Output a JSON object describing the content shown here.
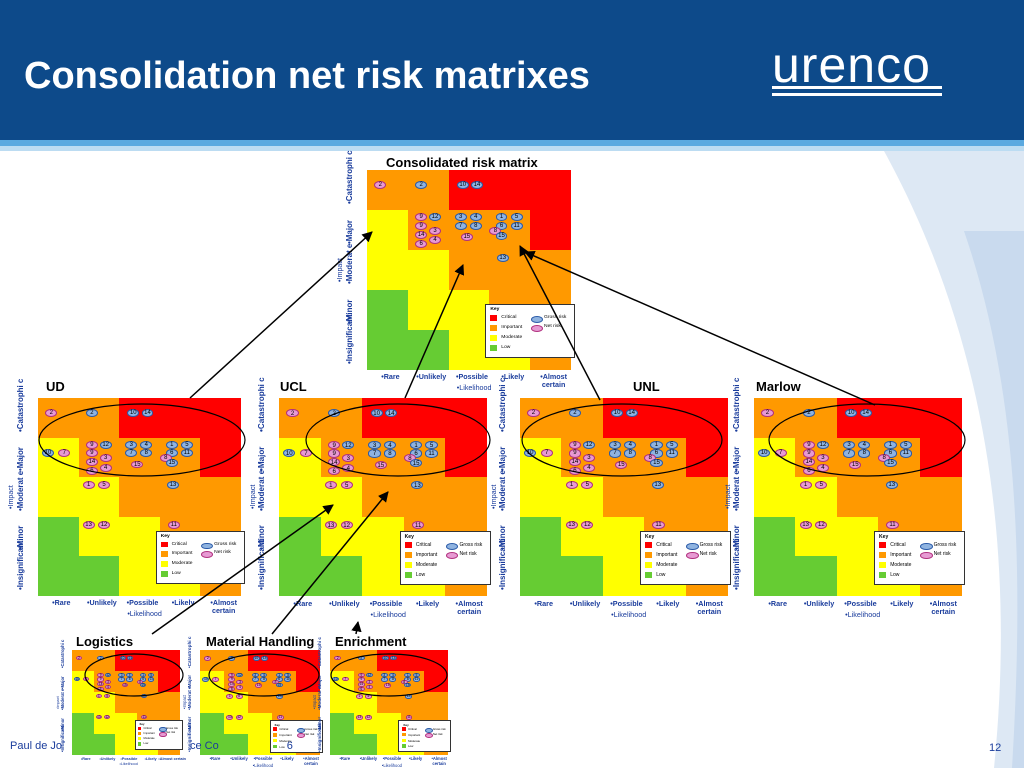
{
  "slide": {
    "title": "Consolidation net risk matrixes",
    "logo_text": "urenco",
    "footer_text": "Paul de Jo",
    "footer_tail": "ce Co",
    "footer_tail2": "6",
    "page_number": "12"
  },
  "colors": {
    "header": "#0d4a8a",
    "critical": "#ff0000",
    "important": "#ff9900",
    "moderate": "#ffff00",
    "low": "#66cc33",
    "gross_oval": "#8fb3e0",
    "net_oval": "#e79ad3",
    "arrow": "#000000"
  },
  "matrix_common": {
    "impact_rows": [
      "•Catastrophi c",
      "•Major",
      "•Moderat e",
      "•Minor",
      "•Insignificant"
    ],
    "impact_axis_label": "•Impact",
    "likelihood_cols": [
      "•Rare",
      "•Unlikely",
      "•Possible",
      "•Likely",
      "•Almost certain"
    ],
    "likelihood_axis_label": "•Likelihood",
    "color_grid": [
      [
        "important",
        "important",
        "critical",
        "critical",
        "critical"
      ],
      [
        "moderate",
        "important",
        "important",
        "important",
        "critical"
      ],
      [
        "moderate",
        "moderate",
        "important",
        "important",
        "important"
      ],
      [
        "low",
        "moderate",
        "moderate",
        "important",
        "important"
      ],
      [
        "low",
        "low",
        "moderate",
        "moderate",
        "important"
      ]
    ],
    "key": {
      "title": "Key",
      "levels": [
        "Critical",
        "Important",
        "Moderate",
        "Low"
      ],
      "gross_label": "Gross risk",
      "net_label": "Net risk"
    }
  },
  "matrices": [
    {
      "id": "consolidated",
      "title": "Consolidated risk matrix",
      "left_ovals": false,
      "bottom_ovals": false
    },
    {
      "id": "ud",
      "title": "UD",
      "left_ovals": true,
      "bottom_ovals": true
    },
    {
      "id": "ucl",
      "title": "UCL",
      "left_ovals": true,
      "bottom_ovals": true
    },
    {
      "id": "unl",
      "title": "UNL",
      "left_ovals": true,
      "bottom_ovals": true
    },
    {
      "id": "marlow",
      "title": "Marlow",
      "left_ovals": true,
      "bottom_ovals": true
    },
    {
      "id": "logistics",
      "title": "Logistics",
      "left_ovals": true,
      "bottom_ovals": true
    },
    {
      "id": "material-handling",
      "title": "Material Handling",
      "left_ovals": true,
      "bottom_ovals": true
    },
    {
      "id": "enrichment",
      "title": "Enrichment",
      "left_ovals": true,
      "bottom_ovals": true
    }
  ],
  "risk_markers": [
    {
      "label": "2",
      "type": "n",
      "c": 0,
      "r": 0,
      "dx": 0.18,
      "dy": 0.28
    },
    {
      "label": "2",
      "type": "g",
      "c": 1,
      "r": 0,
      "dx": 0.18,
      "dy": 0.28
    },
    {
      "label": "10",
      "type": "g",
      "c": 2,
      "r": 0,
      "dx": 0.2,
      "dy": 0.28
    },
    {
      "label": "14",
      "type": "g",
      "c": 2,
      "r": 0,
      "dx": 0.55,
      "dy": 0.28
    },
    {
      "label": "9",
      "type": "n",
      "c": 1,
      "r": 1,
      "dx": 0.18,
      "dy": 0.08
    },
    {
      "label": "12",
      "type": "g",
      "c": 1,
      "r": 1,
      "dx": 0.52,
      "dy": 0.08
    },
    {
      "label": "9",
      "type": "n",
      "c": 1,
      "r": 1,
      "dx": 0.18,
      "dy": 0.3
    },
    {
      "label": "14",
      "type": "n",
      "c": 1,
      "r": 1,
      "dx": 0.18,
      "dy": 0.52
    },
    {
      "label": "3",
      "type": "n",
      "c": 1,
      "r": 1,
      "dx": 0.52,
      "dy": 0.42
    },
    {
      "label": "6",
      "type": "n",
      "c": 1,
      "r": 1,
      "dx": 0.18,
      "dy": 0.74
    },
    {
      "label": "4",
      "type": "n",
      "c": 1,
      "r": 1,
      "dx": 0.52,
      "dy": 0.66
    },
    {
      "label": "3",
      "type": "g",
      "c": 2,
      "r": 1,
      "dx": 0.15,
      "dy": 0.08
    },
    {
      "label": "4",
      "type": "g",
      "c": 2,
      "r": 1,
      "dx": 0.52,
      "dy": 0.08
    },
    {
      "label": "7",
      "type": "g",
      "c": 2,
      "r": 1,
      "dx": 0.15,
      "dy": 0.3
    },
    {
      "label": "8",
      "type": "g",
      "c": 2,
      "r": 1,
      "dx": 0.52,
      "dy": 0.3
    },
    {
      "label": "15",
      "type": "n",
      "c": 2,
      "r": 1,
      "dx": 0.3,
      "dy": 0.58
    },
    {
      "label": "1",
      "type": "g",
      "c": 3,
      "r": 1,
      "dx": 0.15,
      "dy": 0.08
    },
    {
      "label": "5",
      "type": "g",
      "c": 3,
      "r": 1,
      "dx": 0.52,
      "dy": 0.08
    },
    {
      "label": "6",
      "type": "g",
      "c": 3,
      "r": 1,
      "dx": 0.15,
      "dy": 0.3
    },
    {
      "label": "11",
      "type": "g",
      "c": 3,
      "r": 1,
      "dx": 0.52,
      "dy": 0.3
    },
    {
      "label": "8",
      "type": "n",
      "c": 3,
      "r": 1,
      "dx": 0.0,
      "dy": 0.42
    },
    {
      "label": "15",
      "type": "g",
      "c": 3,
      "r": 1,
      "dx": 0.15,
      "dy": 0.55
    },
    {
      "label": "13",
      "type": "g",
      "c": 3,
      "r": 2,
      "dx": 0.18,
      "dy": 0.1
    }
  ],
  "extra_markers": [
    {
      "label": "10",
      "type": "g",
      "c": 0,
      "r": 1,
      "dx": 0.1,
      "dy": 0.28
    },
    {
      "label": "7",
      "type": "n",
      "c": 0,
      "r": 1,
      "dx": 0.5,
      "dy": 0.28
    },
    {
      "label": "1",
      "type": "n",
      "c": 1,
      "r": 2,
      "dx": 0.1,
      "dy": 0.1
    },
    {
      "label": "5",
      "type": "n",
      "c": 1,
      "r": 2,
      "dx": 0.48,
      "dy": 0.1
    },
    {
      "label": "13",
      "type": "n",
      "c": 1,
      "r": 3,
      "dx": 0.1,
      "dy": 0.1
    },
    {
      "label": "12",
      "type": "n",
      "c": 1,
      "r": 3,
      "dx": 0.48,
      "dy": 0.1
    },
    {
      "label": "11",
      "type": "n",
      "c": 3,
      "r": 3,
      "dx": 0.2,
      "dy": 0.1
    }
  ]
}
